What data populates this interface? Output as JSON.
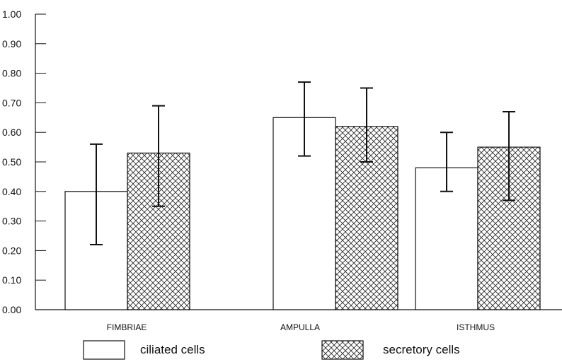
{
  "chart_data": {
    "type": "bar",
    "title": "",
    "xlabel": "",
    "ylabel": "",
    "ylim": [
      0,
      1.0
    ],
    "y_ticks": [
      "0.00",
      "0.10",
      "0.20",
      "0.30",
      "0.40",
      "0.50",
      "0.60",
      "0.70",
      "0.80",
      "0.90",
      "1.00"
    ],
    "categories": [
      "FIMBRIAE",
      "AMPULLA",
      "ISTHMUS"
    ],
    "grid": false,
    "legend_position": "bottom",
    "series": [
      {
        "name": "ciliated cells",
        "fill": "plain",
        "values": [
          0.4,
          0.65,
          0.48
        ],
        "error_low": [
          0.22,
          0.52,
          0.4
        ],
        "error_high": [
          0.56,
          0.77,
          0.6
        ]
      },
      {
        "name": "secretory cells",
        "fill": "crosshatch",
        "values": [
          0.53,
          0.62,
          0.55
        ],
        "error_low": [
          0.35,
          0.5,
          0.37
        ],
        "error_high": [
          0.69,
          0.75,
          0.67
        ]
      }
    ],
    "colors": {
      "bar_stroke": "#111111",
      "bar_fill": "#ffffff",
      "hatch": "#222222"
    }
  }
}
